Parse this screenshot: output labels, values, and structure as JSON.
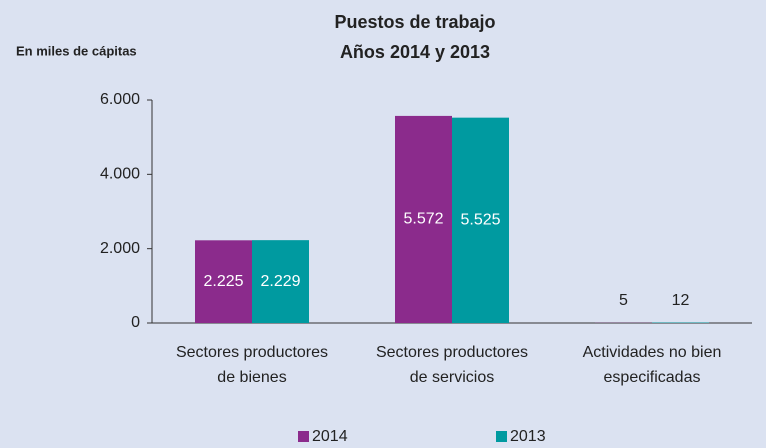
{
  "chart_data": {
    "type": "bar",
    "title": "Puestos de trabajo",
    "subtitle": "Años 2014 y 2013",
    "y_label": "En miles de cápitas",
    "categories": [
      [
        "Sectores productores",
        "de bienes"
      ],
      [
        "Sectores productores",
        "de servicios"
      ],
      [
        "Actividades no bien",
        "especificadas"
      ]
    ],
    "series": [
      {
        "name": "2014",
        "color": "#8b2b8c",
        "values": [
          2225,
          5572,
          5
        ],
        "value_labels": [
          "2.225",
          "5.572",
          "5"
        ]
      },
      {
        "name": "2013",
        "color": "#009aa0",
        "values": [
          2229,
          5525,
          12
        ],
        "value_labels": [
          "2.229",
          "5.525",
          "12"
        ]
      }
    ],
    "ylim": [
      0,
      6000
    ],
    "yticks": [
      0,
      {
        "value": 2000,
        "label": "2.000"
      },
      {
        "value": 4000,
        "label": "4.000"
      },
      {
        "value": 6000,
        "label": "6.000"
      }
    ],
    "grid": false,
    "legend": "bottom"
  }
}
